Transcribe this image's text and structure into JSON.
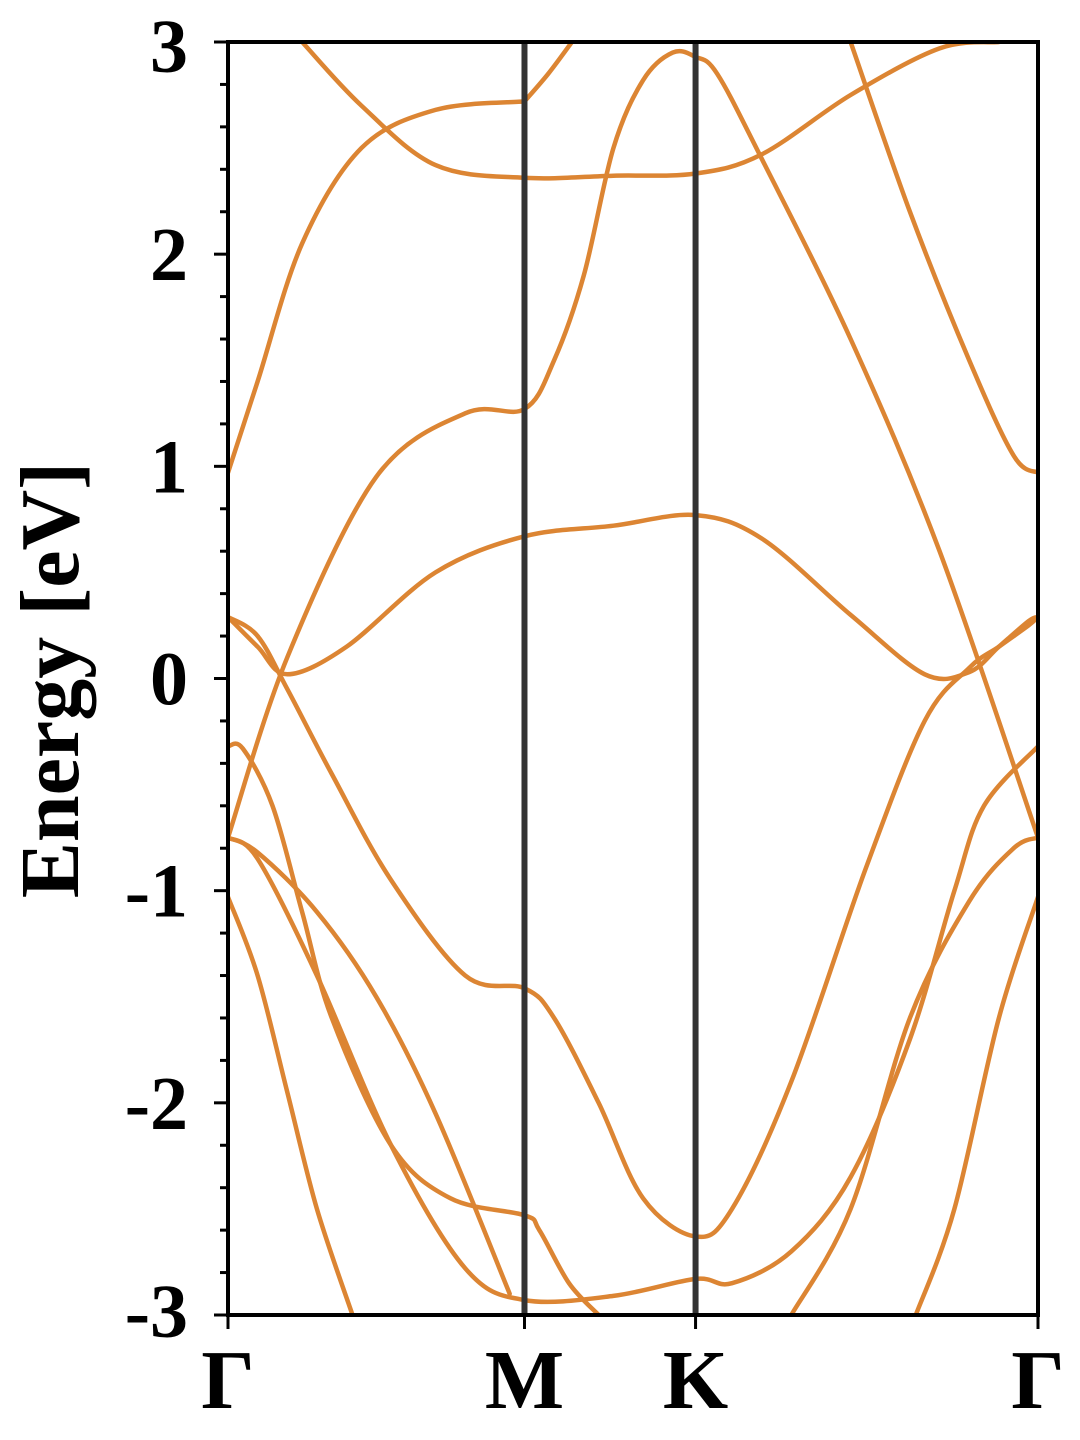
{
  "chart_data": {
    "type": "line",
    "title": "",
    "xlabel": "",
    "ylabel": "Energy [eV]",
    "ylim": [
      -3,
      3
    ],
    "yticks": [
      "-3",
      "-2",
      "-1",
      "0",
      "1",
      "2",
      "3"
    ],
    "xticks": [
      {
        "label": "Γ",
        "k": 0.0
      },
      {
        "label": "M",
        "k": 1.0
      },
      {
        "label": "K",
        "k": 1.577
      },
      {
        "label": "Γ",
        "k": 2.732
      }
    ],
    "grid": false,
    "legend": "none",
    "colors": {
      "band": "#DC8533",
      "kline": "#333333",
      "axes": "#000000"
    },
    "series": [
      {
        "x": [
          0,
          0.1,
          0.25,
          0.45,
          0.7,
          1.0
        ],
        "y": [
          0.97,
          1.4,
          2.05,
          2.5,
          2.68,
          2.72
        ]
      },
      {
        "x": [
          1.0,
          1.08,
          1.16
        ],
        "y": [
          2.72,
          2.85,
          3.0
        ]
      },
      {
        "x": [
          0.25,
          0.45,
          0.7,
          1.0,
          1.3,
          1.577,
          1.8,
          2.1,
          2.4,
          2.6
        ],
        "y": [
          3.0,
          2.7,
          2.42,
          2.36,
          2.37,
          2.38,
          2.47,
          2.75,
          2.97,
          3.0
        ]
      },
      {
        "x": [
          0,
          0.2,
          0.5,
          0.8,
          1.0,
          1.1,
          1.2,
          1.3,
          1.4,
          1.5,
          1.577,
          1.65,
          1.8,
          2.1,
          2.4,
          2.732
        ],
        "y": [
          -0.75,
          0.1,
          0.95,
          1.25,
          1.27,
          1.5,
          1.9,
          2.5,
          2.82,
          2.95,
          2.93,
          2.85,
          2.45,
          1.6,
          0.6,
          -0.75
        ]
      },
      {
        "x": [
          2.1,
          2.3,
          2.5,
          2.65,
          2.732
        ],
        "y": [
          3.0,
          2.2,
          1.5,
          1.05,
          0.97
        ]
      },
      {
        "x": [
          0,
          0.1,
          0.2,
          0.4,
          0.7,
          1.0,
          1.3,
          1.577,
          1.8,
          2.1,
          2.35,
          2.5,
          2.6,
          2.7,
          2.732
        ],
        "y": [
          0.29,
          0.15,
          0.02,
          0.15,
          0.5,
          0.67,
          0.72,
          0.77,
          0.66,
          0.3,
          0.02,
          0.03,
          0.15,
          0.27,
          0.29
        ]
      },
      {
        "x": [
          0,
          0.1,
          0.2,
          0.35,
          0.55,
          0.8,
          1.0,
          1.1,
          1.25,
          1.4,
          1.577,
          1.7,
          1.9,
          2.15,
          2.35,
          2.5,
          2.6,
          2.7,
          2.732
        ],
        "y": [
          0.29,
          0.2,
          -0.05,
          -0.45,
          -0.95,
          -1.4,
          -1.46,
          -1.6,
          -2.0,
          -2.45,
          -2.63,
          -2.5,
          -1.9,
          -0.9,
          -0.2,
          0.05,
          0.15,
          0.25,
          0.29
        ]
      },
      {
        "x": [
          0,
          0.05,
          0.15,
          0.25,
          0.35,
          0.55,
          0.75,
          1.0,
          1.05,
          1.15,
          1.25
        ],
        "y": [
          -0.32,
          -0.33,
          -0.6,
          -1.1,
          -1.6,
          -2.2,
          -2.45,
          -2.53,
          -2.6,
          -2.85,
          -3.0
        ]
      },
      {
        "x": [
          0,
          0.1,
          0.3,
          0.55,
          0.8,
          1.0,
          1.3,
          1.577,
          1.7,
          1.9,
          2.1,
          2.3,
          2.45,
          2.55,
          2.732
        ],
        "y": [
          -0.75,
          -0.85,
          -1.4,
          -2.2,
          -2.78,
          -2.93,
          -2.91,
          -2.83,
          -2.85,
          -2.7,
          -2.35,
          -1.7,
          -1.0,
          -0.6,
          -0.32
        ]
      },
      {
        "x": [
          0,
          0.1,
          0.3,
          0.5,
          0.7,
          0.95
        ],
        "y": [
          -0.75,
          -0.82,
          -1.1,
          -1.5,
          -2.05,
          -2.9
        ]
      },
      {
        "x": [
          0,
          0.1,
          0.2,
          0.3,
          0.42
        ],
        "y": [
          -1.03,
          -1.4,
          -1.95,
          -2.5,
          -3.0
        ]
      },
      {
        "x": [
          1.9,
          2.1,
          2.3,
          2.5,
          2.65,
          2.732
        ],
        "y": [
          -3.0,
          -2.5,
          -1.6,
          -1.05,
          -0.8,
          -0.75
        ]
      },
      {
        "x": [
          2.32,
          2.45,
          2.6,
          2.732
        ],
        "y": [
          -3.0,
          -2.5,
          -1.6,
          -1.03
        ]
      }
    ]
  }
}
